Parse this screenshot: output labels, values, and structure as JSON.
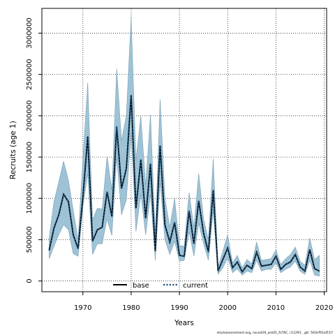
{
  "chart_data": {
    "type": "line",
    "xlabel": "Years",
    "ylabel": "Recruits (age 1)",
    "xlim": [
      1961.5,
      2020.5
    ],
    "ylim": [
      -130000,
      3300000
    ],
    "x_ticks": [
      1970,
      1980,
      1990,
      2000,
      2010,
      2020
    ],
    "y_ticks": [
      0,
      500000,
      1000000,
      1500000,
      2000000,
      2500000,
      3000000
    ],
    "grid": true,
    "legend_position": "bottom-center",
    "legend": [
      {
        "label": "base",
        "style": "solid",
        "color": "#000000"
      },
      {
        "label": "current",
        "style": "dotted",
        "color": "#1f4e79"
      }
    ],
    "band_color": "#9ec3d6",
    "footer": "stockassessment.org, nscod19_ass01_fcTAC, r11291 , git: 503cf91af157",
    "years": [
      1963,
      1964,
      1965,
      1966,
      1967,
      1968,
      1969,
      1970,
      1971,
      1972,
      1973,
      1974,
      1975,
      1976,
      1977,
      1978,
      1979,
      1980,
      1981,
      1982,
      1983,
      1984,
      1985,
      1986,
      1987,
      1988,
      1989,
      1990,
      1991,
      1992,
      1993,
      1994,
      1995,
      1996,
      1997,
      1998,
      1999,
      2000,
      2001,
      2002,
      2003,
      2004,
      2005,
      2006,
      2007,
      2008,
      2009,
      2010,
      2011,
      2012,
      2013,
      2014,
      2015,
      2016,
      2017,
      2018,
      2019
    ],
    "series": [
      {
        "name": "base",
        "values": [
          370000,
          640000,
          800000,
          1050000,
          960000,
          560000,
          390000,
          1020000,
          1750000,
          480000,
          620000,
          650000,
          1080000,
          780000,
          1870000,
          1120000,
          1360000,
          2250000,
          880000,
          1470000,
          760000,
          1420000,
          360000,
          1640000,
          680000,
          470000,
          710000,
          310000,
          300000,
          850000,
          450000,
          970000,
          580000,
          350000,
          1100000,
          120000,
          260000,
          400000,
          160000,
          230000,
          110000,
          190000,
          150000,
          350000,
          180000,
          190000,
          200000,
          300000,
          140000,
          200000,
          230000,
          320000,
          170000,
          120000,
          380000,
          150000,
          120000
        ]
      },
      {
        "name": "current",
        "values": [
          370000,
          640000,
          800000,
          1050000,
          960000,
          560000,
          390000,
          1020000,
          1750000,
          480000,
          620000,
          650000,
          1080000,
          780000,
          1870000,
          1120000,
          1360000,
          2250000,
          880000,
          1470000,
          760000,
          1420000,
          360000,
          1640000,
          680000,
          470000,
          710000,
          310000,
          300000,
          850000,
          450000,
          970000,
          580000,
          350000,
          1100000,
          120000,
          260000,
          400000,
          160000,
          230000,
          110000,
          190000,
          150000,
          350000,
          180000,
          190000,
          200000,
          300000,
          140000,
          200000,
          230000,
          320000,
          170000,
          120000,
          380000,
          150000,
          120000
        ]
      }
    ],
    "ci_lower": [
      270000,
      420000,
      560000,
      680000,
      620000,
      330000,
      300000,
      900000,
      1300000,
      320000,
      450000,
      450000,
      750000,
      550000,
      1500000,
      800000,
      980000,
      1800000,
      600000,
      1050000,
      560000,
      1050000,
      250000,
      1200000,
      500000,
      320000,
      480000,
      240000,
      250000,
      600000,
      300000,
      700000,
      450000,
      250000,
      850000,
      80000,
      160000,
      280000,
      100000,
      150000,
      70000,
      120000,
      100000,
      250000,
      120000,
      140000,
      140000,
      220000,
      100000,
      140000,
      170000,
      240000,
      120000,
      80000,
      250000,
      70000,
      60000
    ],
    "ci_upper": [
      520000,
      960000,
      1200000,
      1450000,
      1220000,
      860000,
      500000,
      1480000,
      2400000,
      740000,
      880000,
      870000,
      1510000,
      1100000,
      2570000,
      1700000,
      2000000,
      3190000,
      1460000,
      2000000,
      1150000,
      2010000,
      560000,
      2200000,
      1000000,
      650000,
      1000000,
      430000,
      420000,
      1070000,
      650000,
      1300000,
      750000,
      500000,
      1480000,
      170000,
      360000,
      560000,
      220000,
      310000,
      160000,
      260000,
      210000,
      470000,
      250000,
      260000,
      270000,
      380000,
      200000,
      270000,
      320000,
      410000,
      240000,
      190000,
      520000,
      260000,
      310000
    ]
  }
}
